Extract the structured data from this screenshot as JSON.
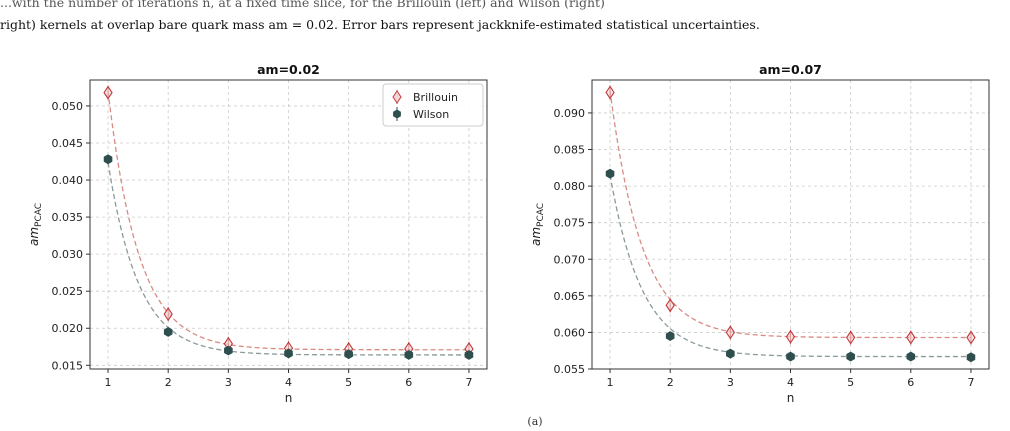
{
  "caption": {
    "line1": "right) kernels at overlap bare quark mass am = 0.02. Error bars represent jackknife-estimated statistical uncertainties.",
    "partial_top": "...with the number of iterations n, at a fixed time slice, for the Brillouin (left) and Wilson (right)"
  },
  "subfigure_label": "(a)",
  "colors": {
    "brillouin": "#c0393b",
    "brillouin_fit": "#d98b84",
    "wilson": "#2f4f4f",
    "wilson_fit": "#8a9a9a",
    "grid": "#cccccc"
  },
  "chart_data": [
    {
      "type": "scatter",
      "title": "am=0.02",
      "xlabel": "n",
      "ylabel": "am_PCAC",
      "ylabel_main": "am",
      "ylabel_sub": "PCAC",
      "xlim": [
        0.7,
        7.3
      ],
      "ylim": [
        0.0145,
        0.0535
      ],
      "xticks": [
        1,
        2,
        3,
        4,
        5,
        6,
        7
      ],
      "yticks": [
        0.015,
        0.02,
        0.025,
        0.03,
        0.035,
        0.04,
        0.045,
        0.05
      ],
      "ytick_labels": [
        "0.015",
        "0.020",
        "0.025",
        "0.030",
        "0.035",
        "0.040",
        "0.045",
        "0.050"
      ],
      "grid": true,
      "legend": "top-right",
      "series": [
        {
          "name": "Brillouin",
          "marker": "thin-diamond",
          "x": [
            1,
            2,
            3,
            4,
            5,
            6,
            7
          ],
          "y": [
            0.0518,
            0.0219,
            0.0179,
            0.0173,
            0.0172,
            0.0172,
            0.0172
          ],
          "fit": {
            "a": 0.0171,
            "b": 0.245,
            "c": 1.95
          }
        },
        {
          "name": "Wilson",
          "marker": "hexagon",
          "x": [
            1,
            2,
            3,
            4,
            5,
            6,
            7
          ],
          "y": [
            0.0428,
            0.0195,
            0.017,
            0.0166,
            0.0165,
            0.0164,
            0.0164
          ],
          "fit": {
            "a": 0.0164,
            "b": 0.1825,
            "c": 1.95
          }
        }
      ]
    },
    {
      "type": "scatter",
      "title": "am=0.07",
      "xlabel": "n",
      "ylabel": "am_PCAC",
      "ylabel_main": "am",
      "ylabel_sub": "PCAC",
      "xlim": [
        0.7,
        7.3
      ],
      "ylim": [
        0.055,
        0.0945
      ],
      "xticks": [
        1,
        2,
        3,
        4,
        5,
        6,
        7
      ],
      "yticks": [
        0.055,
        0.06,
        0.065,
        0.07,
        0.075,
        0.08,
        0.085,
        0.09
      ],
      "ytick_labels": [
        "0.055",
        "0.060",
        "0.065",
        "0.070",
        "0.075",
        "0.080",
        "0.085",
        "0.090"
      ],
      "grid": true,
      "legend": "none",
      "series": [
        {
          "name": "Brillouin",
          "marker": "thin-diamond",
          "x": [
            1,
            2,
            3,
            4,
            5,
            6,
            7
          ],
          "y": [
            0.0928,
            0.0637,
            0.06,
            0.0594,
            0.0593,
            0.0593,
            0.0593
          ],
          "fit": {
            "a": 0.0593,
            "b": 0.219,
            "c": 1.87
          }
        },
        {
          "name": "Wilson",
          "marker": "hexagon",
          "x": [
            1,
            2,
            3,
            4,
            5,
            6,
            7
          ],
          "y": [
            0.0817,
            0.0595,
            0.0571,
            0.0567,
            0.0567,
            0.0567,
            0.0566
          ],
          "fit": {
            "a": 0.0567,
            "b": 0.161,
            "c": 1.87
          }
        }
      ]
    }
  ]
}
